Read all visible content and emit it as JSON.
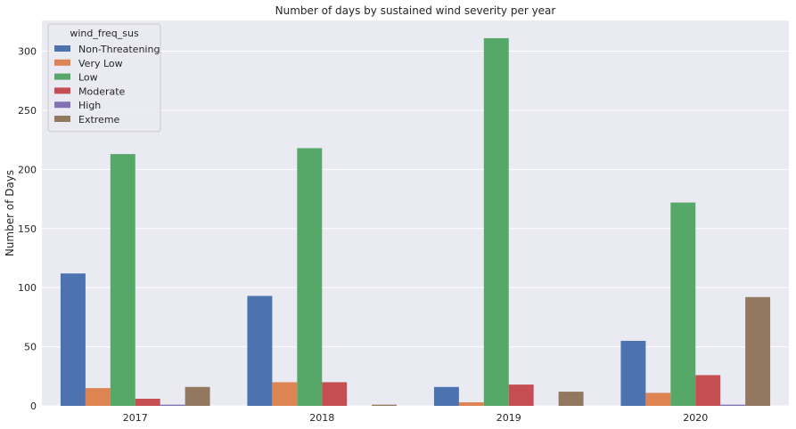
{
  "chart_data": {
    "type": "bar",
    "title": "Number of days by sustained wind severity per year",
    "xlabel": "",
    "ylabel": "Number of Days",
    "categories": [
      "2017",
      "2018",
      "2019",
      "2020"
    ],
    "ylim": [
      0,
      326
    ],
    "yticks": [
      0,
      50,
      100,
      150,
      200,
      250,
      300
    ],
    "grid": true,
    "legend": {
      "title": "wind_freq_sus",
      "position": "top-left"
    },
    "series": [
      {
        "name": "Non-Threatening",
        "color": "#4c72b0",
        "values": [
          112,
          93,
          16,
          55
        ]
      },
      {
        "name": "Very Low",
        "color": "#dd8452",
        "values": [
          15,
          20,
          3,
          11
        ]
      },
      {
        "name": "Low",
        "color": "#55a868",
        "values": [
          213,
          218,
          311,
          172
        ]
      },
      {
        "name": "Moderate",
        "color": "#c44e52",
        "values": [
          6,
          20,
          18,
          26
        ]
      },
      {
        "name": "High",
        "color": "#8172b3",
        "values": [
          1,
          0,
          0,
          1
        ]
      },
      {
        "name": "Extreme",
        "color": "#937860",
        "values": [
          16,
          1,
          12,
          92
        ]
      }
    ]
  }
}
